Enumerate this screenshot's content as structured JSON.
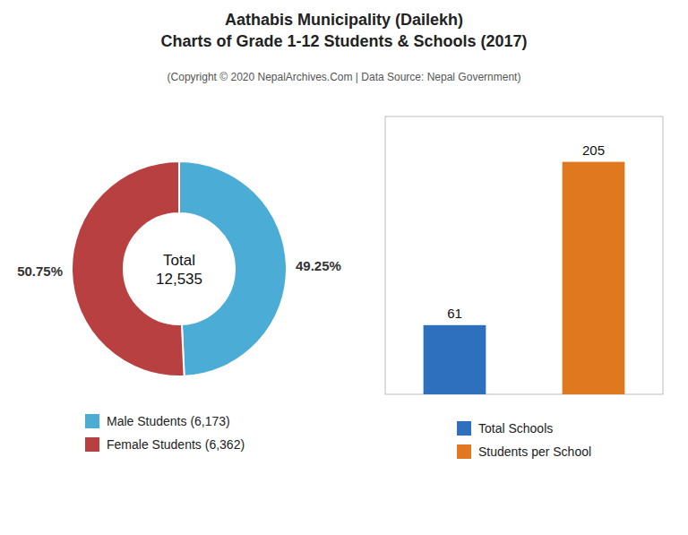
{
  "title": "Aathabis Municipality (Dailekh)\nCharts of Grade 1-12 Students & Schools (2017)",
  "subtitle": "(Copyright © 2020 NepalArchives.Com | Data Source: Nepal Government)",
  "chart_data": [
    {
      "type": "pie",
      "categories": [
        "Male Students (6,173)",
        "Female Students (6,362)"
      ],
      "values": [
        49.25,
        50.75
      ],
      "value_labels": [
        "49.25%",
        "50.75%"
      ],
      "colors": [
        "#4bacd6",
        "#b94040"
      ],
      "annotations": [
        "Total\n12,535"
      ],
      "data_labels": true,
      "legend": "bottom"
    },
    {
      "type": "bar",
      "categories": [
        "Total Schools",
        "Students per School"
      ],
      "values": [
        61,
        205
      ],
      "colors": [
        "#2e6fbe",
        "#e07820"
      ],
      "ylim": [
        0,
        245
      ],
      "data_labels": true,
      "tick_labels": false,
      "grid": false,
      "legend": "bottom"
    }
  ]
}
